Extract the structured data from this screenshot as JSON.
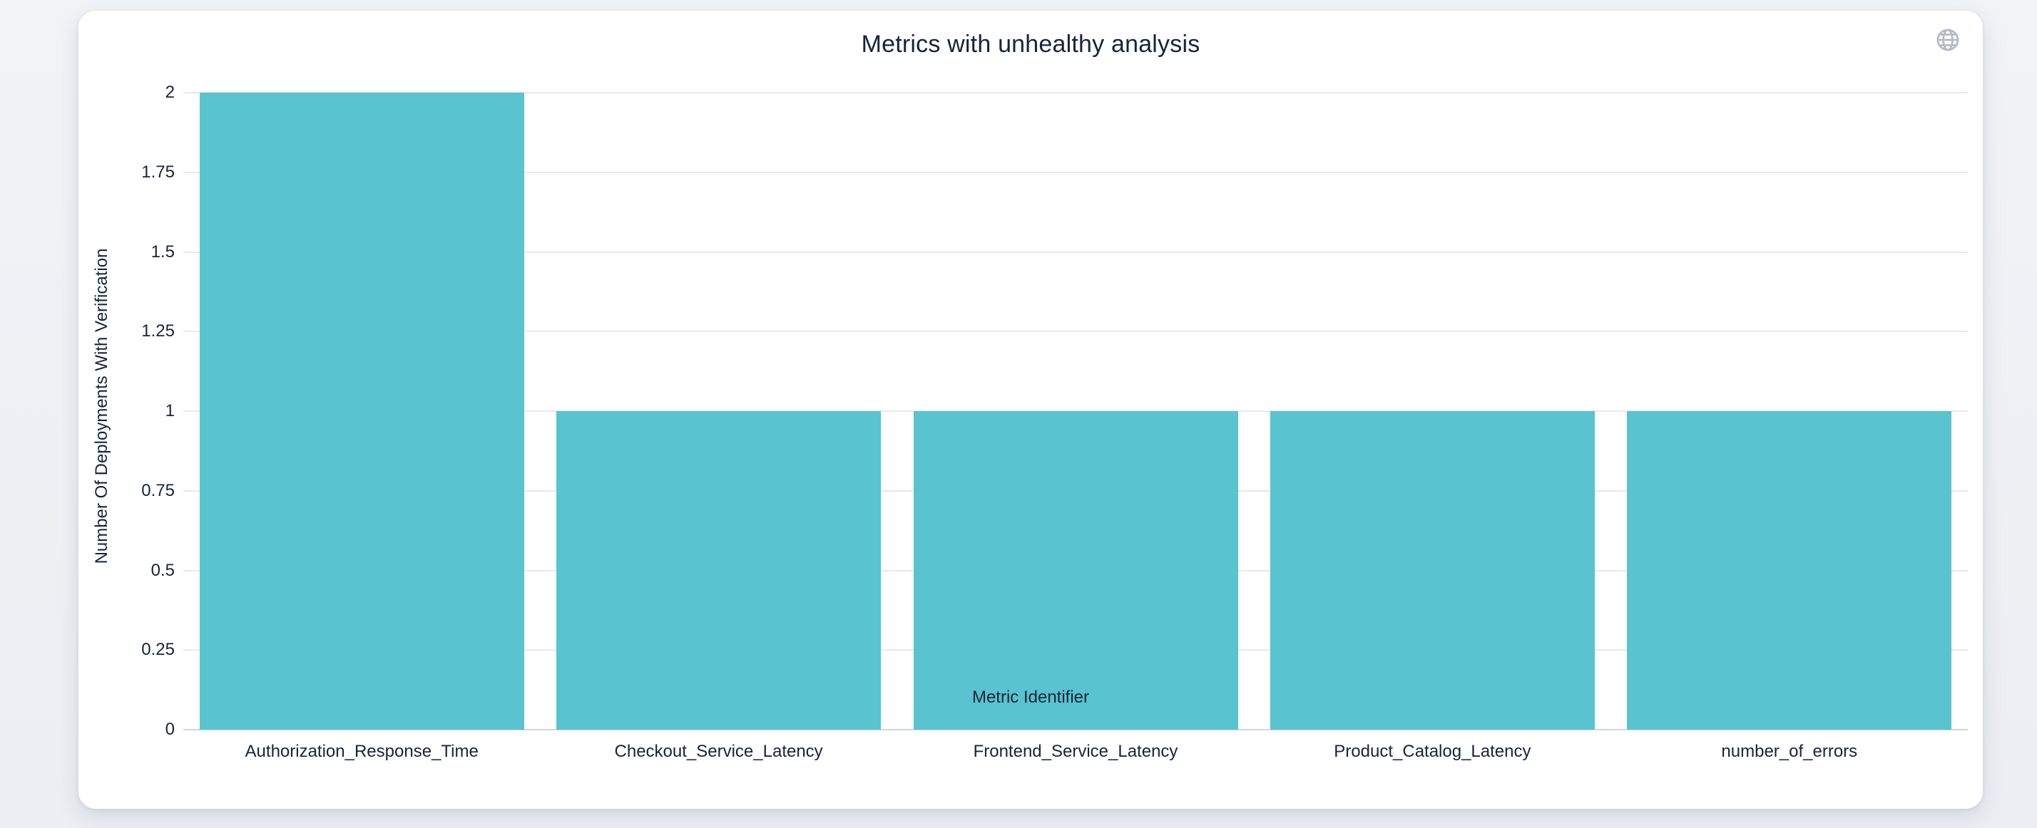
{
  "header": {
    "title": "Metrics with unhealthy analysis"
  },
  "toolbox": {
    "icon": "globe-icon",
    "icon_color": "#b4bbc7"
  },
  "colors": {
    "bar": "#59c3cf",
    "grid": "#e8e9ec",
    "axis_line": "#ccd5e4",
    "text": "#16243c",
    "card_background": "#ffffff",
    "page_background": "#eef0f4"
  },
  "chart_data": {
    "type": "bar",
    "title": "Metrics with unhealthy analysis",
    "categories": [
      "Authorization_Response_Time",
      "Checkout_Service_Latency",
      "Frontend_Service_Latency",
      "Product_Catalog_Latency",
      "number_of_errors"
    ],
    "values": [
      2,
      1,
      1,
      1,
      1
    ],
    "xlabel": "Metric Identifier",
    "ylabel": "Number Of Deployments With Verification",
    "ylim": [
      0,
      2
    ],
    "ytick_labels": [
      "0",
      "0.25",
      "0.5",
      "0.75",
      "1",
      "1.25",
      "1.5",
      "1.75",
      "2"
    ],
    "grid": true,
    "legend": "none",
    "bar_color": "#59c3cf"
  }
}
